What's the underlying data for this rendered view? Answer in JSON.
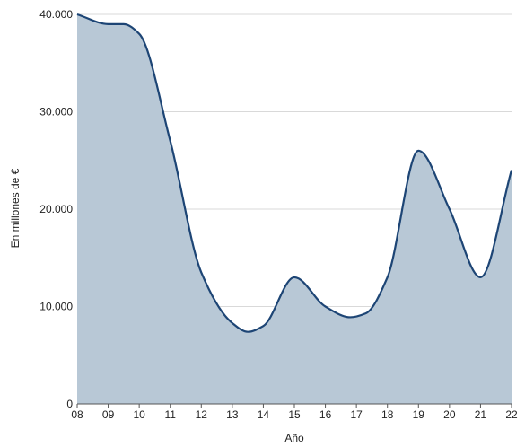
{
  "chart_data": {
    "type": "area",
    "xlabel": "Año",
    "ylabel": "En millones de €",
    "x_ticks": [
      "08",
      "09",
      "10",
      "11",
      "12",
      "13",
      "14",
      "15",
      "16",
      "17",
      "18",
      "19",
      "20",
      "21",
      "22"
    ],
    "y_ticks": [
      "0",
      "10.000",
      "20.000",
      "30.000",
      "40.000"
    ],
    "ylim": [
      0,
      40000
    ],
    "xlim": [
      2008,
      2022
    ],
    "grid": true,
    "series": [
      {
        "x": [
          2008,
          2009,
          2009.5,
          2010,
          2011,
          2012,
          2013,
          2013.5,
          2014,
          2015,
          2016,
          2016.8,
          2017.3,
          2018,
          2019,
          2020,
          2021,
          2022
        ],
        "values": [
          40000,
          39000,
          39000,
          38000,
          27000,
          13500,
          8300,
          7400,
          8000,
          13000,
          10000,
          8900,
          9300,
          13000,
          26000,
          20000,
          13000,
          24000
        ]
      }
    ],
    "colors": {
      "line": "#1d4575",
      "fill": "#b8c8d6",
      "grid": "#d9d9d9",
      "axis": "#555555"
    }
  }
}
